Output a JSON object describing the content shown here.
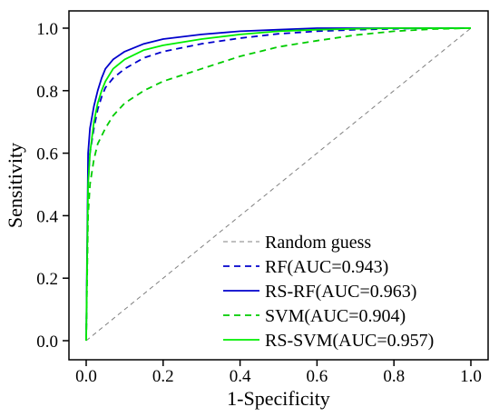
{
  "chart_data": {
    "type": "line",
    "xlabel": "1-Specificity",
    "ylabel": "Sensitivity",
    "xlim": [
      0.0,
      1.0
    ],
    "ylim": [
      0.0,
      1.0
    ],
    "xticks": [
      "0.0",
      "0.2",
      "0.4",
      "0.6",
      "0.8",
      "1.0"
    ],
    "yticks": [
      "0.0",
      "0.2",
      "0.4",
      "0.6",
      "0.8",
      "1.0"
    ],
    "grid": false,
    "legend_position": "bottom-right",
    "series": [
      {
        "name": "Random guess",
        "color": "#808080",
        "style": "dashed-thin",
        "x": [
          0.0,
          1.0
        ],
        "y": [
          0.0,
          1.0
        ]
      },
      {
        "name": "RF(AUC=0.943)",
        "color": "#0000cc",
        "style": "dashed",
        "x": [
          0.0,
          0.005,
          0.01,
          0.02,
          0.03,
          0.04,
          0.05,
          0.07,
          0.1,
          0.15,
          0.2,
          0.3,
          0.4,
          0.5,
          0.6,
          0.7,
          0.8,
          0.9,
          1.0
        ],
        "y": [
          0.0,
          0.5,
          0.6,
          0.68,
          0.74,
          0.78,
          0.81,
          0.84,
          0.87,
          0.905,
          0.925,
          0.95,
          0.968,
          0.982,
          0.99,
          0.995,
          0.998,
          1.0,
          1.0
        ]
      },
      {
        "name": "RS-RF(AUC=0.963)",
        "color": "#0000cc",
        "style": "solid",
        "x": [
          0.0,
          0.005,
          0.01,
          0.02,
          0.03,
          0.04,
          0.05,
          0.07,
          0.1,
          0.15,
          0.2,
          0.3,
          0.4,
          0.5,
          0.6,
          0.7,
          0.8,
          0.9,
          1.0
        ],
        "y": [
          0.0,
          0.6,
          0.68,
          0.75,
          0.8,
          0.84,
          0.87,
          0.9,
          0.925,
          0.95,
          0.965,
          0.98,
          0.99,
          0.995,
          1.0,
          1.0,
          1.0,
          1.0,
          1.0
        ]
      },
      {
        "name": "SVM(AUC=0.904)",
        "color": "#00cc00",
        "style": "dashed",
        "x": [
          0.0,
          0.005,
          0.01,
          0.02,
          0.03,
          0.05,
          0.07,
          0.1,
          0.15,
          0.2,
          0.25,
          0.3,
          0.4,
          0.5,
          0.6,
          0.7,
          0.8,
          0.9,
          1.0
        ],
        "y": [
          0.0,
          0.4,
          0.5,
          0.58,
          0.63,
          0.68,
          0.72,
          0.76,
          0.8,
          0.83,
          0.85,
          0.87,
          0.91,
          0.94,
          0.96,
          0.978,
          0.99,
          0.997,
          1.0
        ]
      },
      {
        "name": "RS-SVM(AUC=0.957)",
        "color": "#00ee00",
        "style": "solid",
        "x": [
          0.0,
          0.005,
          0.01,
          0.02,
          0.03,
          0.04,
          0.05,
          0.07,
          0.1,
          0.15,
          0.2,
          0.3,
          0.4,
          0.5,
          0.6,
          0.7,
          0.8,
          0.9,
          1.0
        ],
        "y": [
          0.0,
          0.5,
          0.6,
          0.7,
          0.76,
          0.8,
          0.83,
          0.87,
          0.9,
          0.93,
          0.945,
          0.965,
          0.98,
          0.99,
          0.995,
          0.998,
          1.0,
          1.0,
          1.0
        ]
      }
    ]
  }
}
